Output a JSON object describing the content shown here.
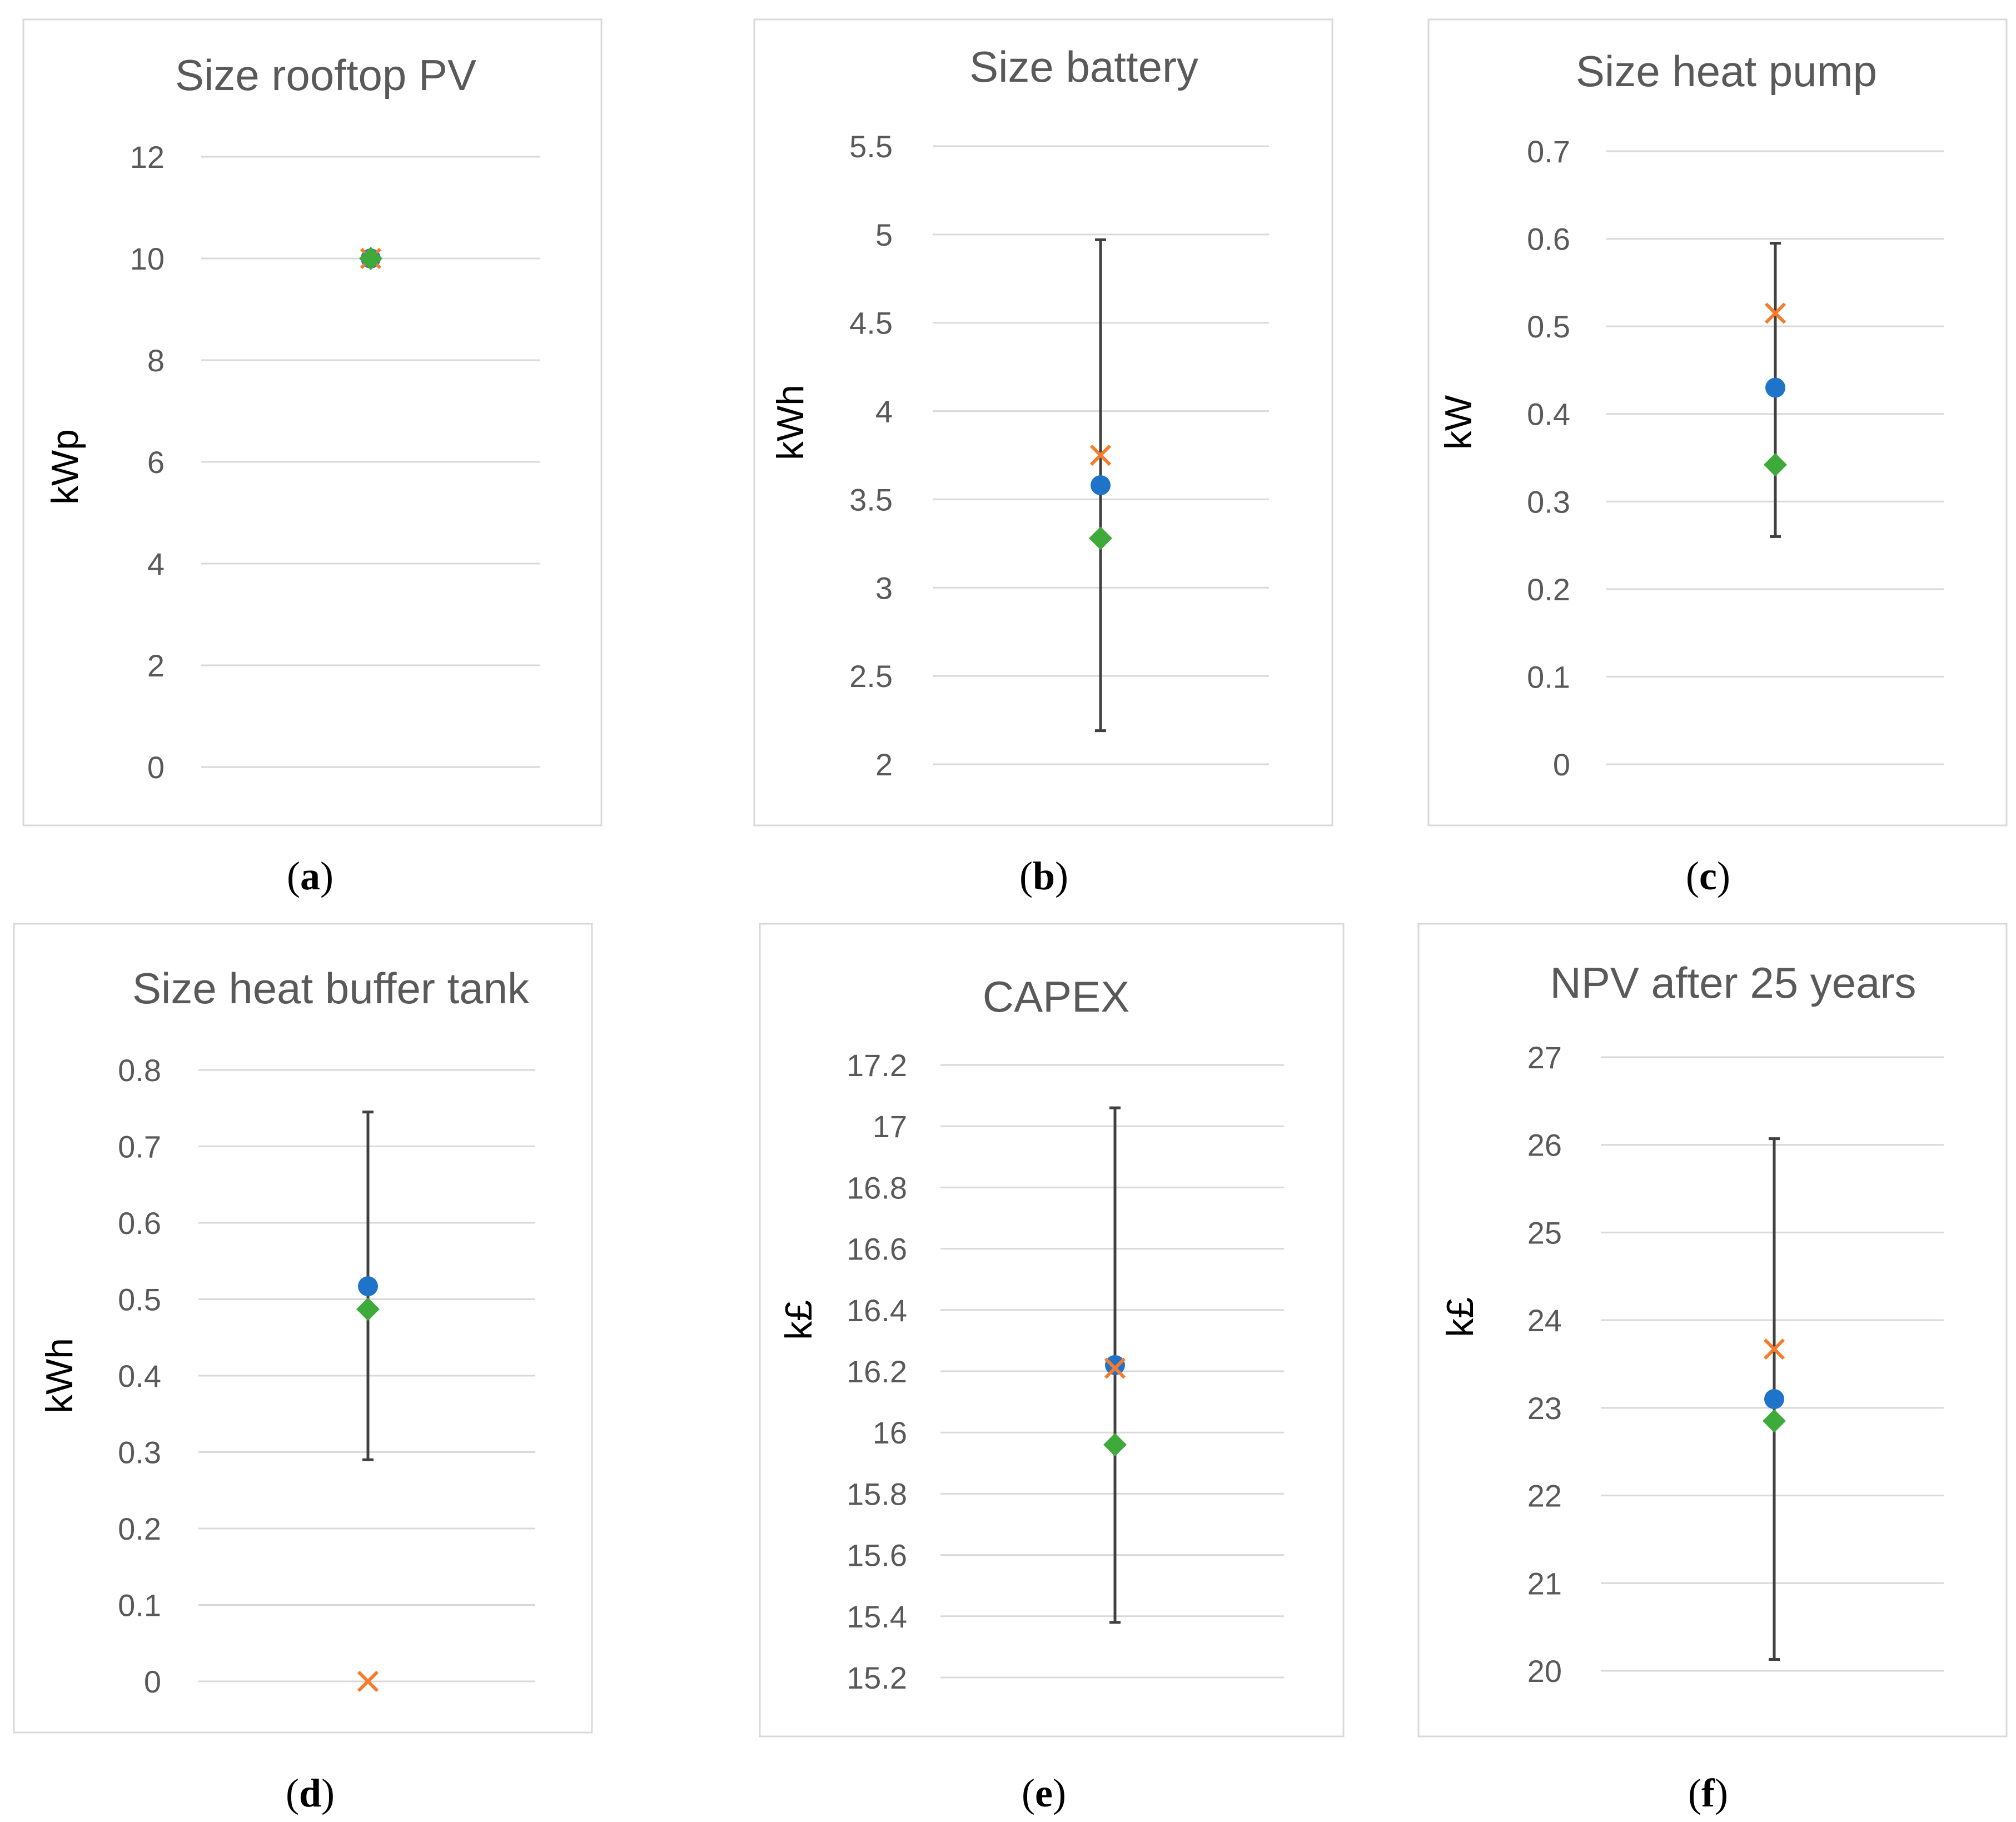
{
  "colors": {
    "mean": "#1F73C8",
    "x_marker": "#F47C2C",
    "diamond": "#3EAA3A",
    "errorbar": "#404040",
    "grid": "#D9D9D9",
    "frame": "#D9D9D9",
    "text": "#595959"
  },
  "chart_data": [
    {
      "type": "scatter",
      "panel_label": "a",
      "title": "Size rooftop PV",
      "ylabel": "kWp",
      "ylim": [
        0,
        12
      ],
      "yticks": [
        0,
        2,
        4,
        6,
        8,
        10,
        12
      ],
      "ytick_labels": [
        "0",
        "2",
        "4",
        "6",
        "8",
        "10",
        "12"
      ],
      "series": [
        {
          "name": "mean",
          "marker": "circle",
          "value": 10.0,
          "error_low": 10.0,
          "error_high": 10.0
        },
        {
          "name": "x-marker",
          "marker": "x",
          "value": 10.0
        },
        {
          "name": "diamond",
          "marker": "diamond",
          "value": 10.0
        }
      ]
    },
    {
      "type": "scatter",
      "panel_label": "b",
      "title": "Size battery",
      "ylabel": "kWh",
      "ylim": [
        2,
        5.5
      ],
      "yticks": [
        2,
        2.5,
        3,
        3.5,
        4,
        4.5,
        5,
        5.5
      ],
      "ytick_labels": [
        "2",
        "2.5",
        "3",
        "3.5",
        "4",
        "4.5",
        "5",
        "5.5"
      ],
      "series": [
        {
          "name": "mean",
          "marker": "circle",
          "value": 3.58,
          "error_low": 2.19,
          "error_high": 4.97
        },
        {
          "name": "x-marker",
          "marker": "x",
          "value": 3.75
        },
        {
          "name": "diamond",
          "marker": "diamond",
          "value": 3.28
        }
      ]
    },
    {
      "type": "scatter",
      "panel_label": "c",
      "title": "Size heat pump",
      "ylabel": "kW",
      "ylim": [
        0,
        0.7
      ],
      "yticks": [
        0,
        0.1,
        0.2,
        0.3,
        0.4,
        0.5,
        0.6,
        0.7
      ],
      "ytick_labels": [
        "0",
        "0.1",
        "0.2",
        "0.3",
        "0.4",
        "0.5",
        "0.6",
        "0.7"
      ],
      "series": [
        {
          "name": "mean",
          "marker": "circle",
          "value": 0.43,
          "error_low": 0.26,
          "error_high": 0.595
        },
        {
          "name": "x-marker",
          "marker": "x",
          "value": 0.515
        },
        {
          "name": "diamond",
          "marker": "diamond",
          "value": 0.342
        }
      ]
    },
    {
      "type": "scatter",
      "panel_label": "d",
      "title": "Size heat buffer tank",
      "ylabel": "kWh",
      "ylim": [
        0,
        0.8
      ],
      "yticks": [
        0,
        0.1,
        0.2,
        0.3,
        0.4,
        0.5,
        0.6,
        0.7,
        0.8
      ],
      "ytick_labels": [
        "0",
        "0.1",
        "0.2",
        "0.3",
        "0.4",
        "0.5",
        "0.6",
        "0.7",
        "0.8"
      ],
      "series": [
        {
          "name": "mean",
          "marker": "circle",
          "value": 0.517,
          "error_low": 0.29,
          "error_high": 0.745
        },
        {
          "name": "x-marker",
          "marker": "x",
          "value": 0.0
        },
        {
          "name": "diamond",
          "marker": "diamond",
          "value": 0.487
        }
      ]
    },
    {
      "type": "scatter",
      "panel_label": "e",
      "title": "CAPEX",
      "ylabel": "k£",
      "ylim": [
        15.2,
        17.2
      ],
      "yticks": [
        15.2,
        15.4,
        15.6,
        15.8,
        16,
        16.2,
        16.4,
        16.6,
        16.8,
        17,
        17.2
      ],
      "ytick_labels": [
        "15.2",
        "15.4",
        "15.6",
        "15.8",
        "16",
        "16.2",
        "16.4",
        "16.6",
        "16.8",
        "17",
        "17.2"
      ],
      "series": [
        {
          "name": "mean",
          "marker": "circle",
          "value": 16.22,
          "error_low": 15.38,
          "error_high": 17.06
        },
        {
          "name": "x-marker",
          "marker": "x",
          "value": 16.21
        },
        {
          "name": "diamond",
          "marker": "diamond",
          "value": 15.96
        }
      ]
    },
    {
      "type": "scatter",
      "panel_label": "f",
      "title": "NPV after 25 years",
      "ylabel": "k£",
      "ylim": [
        20,
        27
      ],
      "yticks": [
        20,
        21,
        22,
        23,
        24,
        25,
        26,
        27
      ],
      "ytick_labels": [
        "20",
        "21",
        "22",
        "23",
        "24",
        "25",
        "26",
        "27"
      ],
      "series": [
        {
          "name": "mean",
          "marker": "circle",
          "value": 23.1,
          "error_low": 20.13,
          "error_high": 26.07
        },
        {
          "name": "x-marker",
          "marker": "x",
          "value": 23.67
        },
        {
          "name": "diamond",
          "marker": "diamond",
          "value": 22.85
        }
      ]
    }
  ]
}
